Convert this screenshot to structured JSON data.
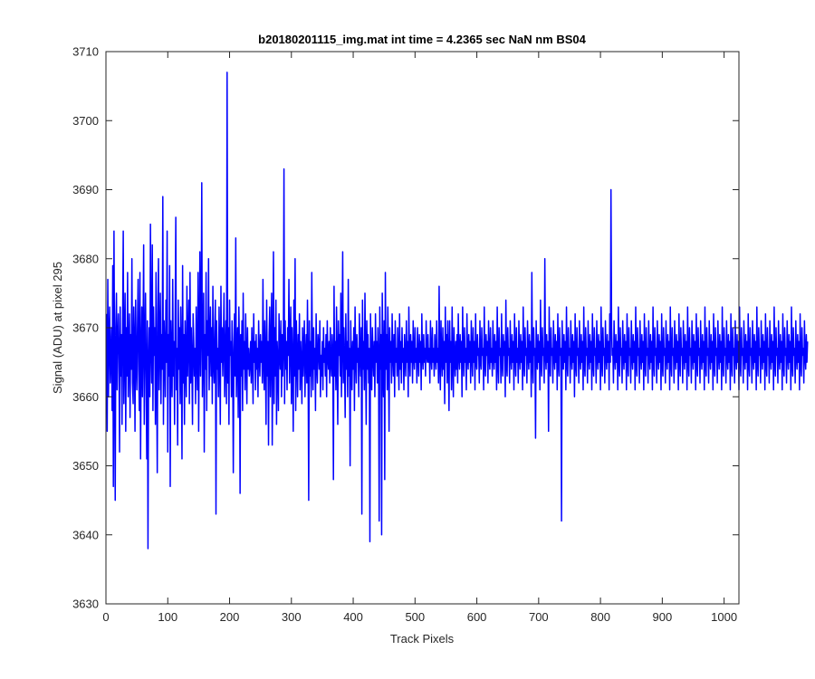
{
  "chart_data": {
    "type": "line",
    "title": "b20180201115_img.mat int time = 4.2365 sec  NaN nm BS04",
    "xlabel": "Track Pixels",
    "ylabel": "Signal (ADU) at pixel 295",
    "xlim": [
      0,
      1024
    ],
    "ylim": [
      3630,
      3710
    ],
    "xticks": [
      0,
      100,
      200,
      300,
      400,
      500,
      600,
      700,
      800,
      900,
      1000
    ],
    "yticks": [
      3630,
      3640,
      3650,
      3660,
      3670,
      3680,
      3690,
      3700,
      3710
    ],
    "grid": false,
    "box": true,
    "series": [
      {
        "color": "#0000ff",
        "x_start": 1,
        "x_step": 1,
        "mean": 3666,
        "values": [
          3672,
          3655,
          3677,
          3660,
          3668,
          3673,
          3662,
          3666,
          3670,
          3658,
          3679,
          3647,
          3684,
          3664,
          3645,
          3670,
          3675,
          3661,
          3668,
          3672,
          3666,
          3652,
          3673,
          3663,
          3669,
          3656,
          3671,
          3684,
          3659,
          3667,
          3675,
          3655,
          3670,
          3663,
          3678,
          3660,
          3666,
          3672,
          3657,
          3669,
          3664,
          3680,
          3662,
          3659,
          3673,
          3668,
          3655,
          3674,
          3666,
          3661,
          3670,
          3677,
          3664,
          3658,
          3678,
          3651,
          3666,
          3673,
          3660,
          3669,
          3682,
          3656,
          3667,
          3675,
          3663,
          3651,
          3671,
          3638,
          3665,
          3670,
          3660,
          3685,
          3667,
          3662,
          3682,
          3658,
          3673,
          3666,
          3670,
          3656,
          3678,
          3664,
          3649,
          3672,
          3680,
          3661,
          3668,
          3675,
          3659,
          3669,
          3664,
          3689,
          3656,
          3671,
          3667,
          3660,
          3674,
          3665,
          3684,
          3652,
          3669,
          3663,
          3679,
          3647,
          3671,
          3666,
          3660,
          3677,
          3663,
          3668,
          3656,
          3672,
          3686,
          3661,
          3667,
          3653,
          3674,
          3664,
          3670,
          3659,
          3673,
          3666,
          3651,
          3679,
          3662,
          3669,
          3656,
          3671,
          3665,
          3660,
          3676,
          3663,
          3668,
          3674,
          3659,
          3678,
          3662,
          3670,
          3665,
          3656,
          3672,
          3668,
          3663,
          3667,
          3659,
          3673,
          3666,
          3661,
          3678,
          3655,
          3669,
          3681,
          3663,
          3670,
          3691,
          3660,
          3667,
          3675,
          3652,
          3669,
          3664,
          3678,
          3658,
          3671,
          3666,
          3680,
          3661,
          3668,
          3673,
          3663,
          3670,
          3659,
          3676,
          3665,
          3662,
          3669,
          3674,
          3643,
          3671,
          3664,
          3667,
          3660,
          3673,
          3666,
          3656,
          3676,
          3665,
          3670,
          3663,
          3668,
          3675,
          3660,
          3666,
          3671,
          3659,
          3707,
          3662,
          3670,
          3656,
          3674,
          3666,
          3668,
          3660,
          3671,
          3665,
          3649,
          3667,
          3672,
          3663,
          3683,
          3660,
          3666,
          3670,
          3657,
          3673,
          3667,
          3646,
          3669,
          3663,
          3671,
          3658,
          3675,
          3664,
          3668,
          3661,
          3672,
          3666,
          3659,
          3670,
          3664,
          3667,
          3663,
          3665,
          3668,
          3662,
          3670,
          3666,
          3659,
          3672,
          3665,
          3668,
          3661,
          3669,
          3664,
          3667,
          3660,
          3671,
          3666,
          3663,
          3669,
          3665,
          3668,
          3662,
          3677,
          3665,
          3661,
          3671,
          3666,
          3656,
          3674,
          3663,
          3668,
          3653,
          3669,
          3673,
          3660,
          3667,
          3675,
          3653,
          3667,
          3681,
          3659,
          3670,
          3663,
          3674,
          3656,
          3668,
          3665,
          3658,
          3672,
          3666,
          3664,
          3671,
          3660,
          3669,
          3663,
          3667,
          3693,
          3659,
          3671,
          3664,
          3668,
          3661,
          3670,
          3666,
          3677,
          3662,
          3668,
          3673,
          3659,
          3670,
          3665,
          3655,
          3674,
          3663,
          3680,
          3658,
          3671,
          3666,
          3660,
          3669,
          3664,
          3672,
          3661,
          3668,
          3665,
          3659,
          3670,
          3663,
          3667,
          3671,
          3660,
          3666,
          3669,
          3662,
          3674,
          3665,
          3645,
          3671,
          3663,
          3668,
          3660,
          3678,
          3666,
          3661,
          3670,
          3664,
          3667,
          3658,
          3672,
          3665,
          3662,
          3669,
          3667,
          3664,
          3671,
          3660,
          3666,
          3663,
          3668,
          3661,
          3670,
          3665,
          3667,
          3663,
          3669,
          3660,
          3671,
          3666,
          3664,
          3668,
          3662,
          3670,
          3665,
          3663,
          3669,
          3666,
          3648,
          3676,
          3663,
          3668,
          3661,
          3673,
          3665,
          3656,
          3671,
          3666,
          3669,
          3663,
          3675,
          3660,
          3668,
          3681,
          3662,
          3670,
          3665,
          3657,
          3672,
          3664,
          3668,
          3660,
          3677,
          3663,
          3667,
          3650,
          3671,
          3665,
          3661,
          3668,
          3664,
          3670,
          3658,
          3673,
          3666,
          3662,
          3669,
          3665,
          3667,
          3660,
          3672,
          3666,
          3663,
          3670,
          3643,
          3674,
          3664,
          3668,
          3661,
          3675,
          3666,
          3656,
          3671,
          3664,
          3669,
          3662,
          3667,
          3639,
          3672,
          3665,
          3661,
          3670,
          3666,
          3663,
          3668,
          3660,
          3672,
          3665,
          3668,
          3662,
          3670,
          3666,
          3642,
          3673,
          3664,
          3669,
          3640,
          3675,
          3666,
          3660,
          3671,
          3648,
          3678,
          3664,
          3669,
          3661,
          3673,
          3666,
          3655,
          3670,
          3665,
          3668,
          3662,
          3672,
          3666,
          3663,
          3669,
          3660,
          3671,
          3665,
          3667,
          3663,
          3670,
          3666,
          3661,
          3672,
          3664,
          3668,
          3662,
          3670,
          3665,
          3667,
          3661,
          3669,
          3666,
          3663,
          3671,
          3665,
          3668,
          3660,
          3673,
          3666,
          3663,
          3669,
          3665,
          3668,
          3662,
          3671,
          3666,
          3664,
          3670,
          3665,
          3667,
          3662,
          3670,
          3666,
          3663,
          3669,
          3665,
          3668,
          3661,
          3672,
          3666,
          3664,
          3669,
          3665,
          3667,
          3663,
          3671,
          3666,
          3665,
          3669,
          3665,
          3667,
          3662,
          3671,
          3666,
          3664,
          3670,
          3665,
          3667,
          3663,
          3669,
          3666,
          3664,
          3671,
          3665,
          3667,
          3662,
          3676,
          3665,
          3661,
          3671,
          3666,
          3663,
          3670,
          3664,
          3668,
          3659,
          3673,
          3665,
          3669,
          3662,
          3671,
          3666,
          3658,
          3671,
          3665,
          3668,
          3661,
          3673,
          3665,
          3660,
          3670,
          3666,
          3663,
          3668,
          3664,
          3669,
          3662,
          3672,
          3666,
          3664,
          3669,
          3665,
          3668,
          3660,
          3673,
          3666,
          3663,
          3670,
          3665,
          3667,
          3661,
          3672,
          3666,
          3664,
          3669,
          3665,
          3668,
          3662,
          3671,
          3666,
          3663,
          3670,
          3665,
          3668,
          3661,
          3672,
          3665,
          3664,
          3669,
          3666,
          3667,
          3662,
          3671,
          3665,
          3664,
          3670,
          3666,
          3667,
          3661,
          3673,
          3665,
          3663,
          3669,
          3666,
          3668,
          3662,
          3671,
          3666,
          3664,
          3670,
          3665,
          3667,
          3663,
          3671,
          3666,
          3664,
          3669,
          3665,
          3668,
          3661,
          3673,
          3665,
          3662,
          3670,
          3666,
          3667,
          3662,
          3672,
          3665,
          3663,
          3669,
          3666,
          3668,
          3660,
          3674,
          3665,
          3663,
          3670,
          3666,
          3667,
          3662,
          3671,
          3666,
          3664,
          3669,
          3665,
          3668,
          3661,
          3672,
          3666,
          3663,
          3670,
          3665,
          3667,
          3662,
          3671,
          3666,
          3664,
          3669,
          3665,
          3668,
          3661,
          3673,
          3665,
          3663,
          3670,
          3666,
          3667,
          3662,
          3671,
          3666,
          3664,
          3669,
          3665,
          3668,
          3660,
          3678,
          3665,
          3662,
          3670,
          3666,
          3667,
          3654,
          3671,
          3666,
          3664,
          3669,
          3665,
          3668,
          3661,
          3674,
          3665,
          3663,
          3670,
          3666,
          3667,
          3662,
          3680,
          3666,
          3664,
          3669,
          3665,
          3668,
          3655,
          3673,
          3665,
          3663,
          3670,
          3666,
          3667,
          3662,
          3671,
          3666,
          3664,
          3669,
          3665,
          3668,
          3661,
          3672,
          3665,
          3663,
          3670,
          3666,
          3667,
          3642,
          3671,
          3666,
          3664,
          3669,
          3665,
          3668,
          3661,
          3673,
          3665,
          3663,
          3670,
          3666,
          3667,
          3662,
          3671,
          3666,
          3664,
          3669,
          3665,
          3668,
          3660,
          3672,
          3665,
          3663,
          3670,
          3666,
          3667,
          3662,
          3671,
          3666,
          3664,
          3669,
          3665,
          3668,
          3661,
          3673,
          3665,
          3663,
          3670,
          3666,
          3667,
          3662,
          3671,
          3666,
          3664,
          3669,
          3665,
          3668,
          3661,
          3672,
          3665,
          3663,
          3670,
          3666,
          3667,
          3662,
          3671,
          3666,
          3664,
          3669,
          3665,
          3668,
          3661,
          3673,
          3665,
          3663,
          3670,
          3666,
          3667,
          3662,
          3671,
          3666,
          3664,
          3669,
          3665,
          3668,
          3661,
          3672,
          3665,
          3690,
          3670,
          3666,
          3667,
          3662,
          3671,
          3666,
          3664,
          3669,
          3665,
          3668,
          3661,
          3673,
          3665,
          3663,
          3670,
          3666,
          3667,
          3662,
          3671,
          3666,
          3664,
          3669,
          3665,
          3668,
          3661,
          3672,
          3665,
          3663,
          3670,
          3666,
          3667,
          3662,
          3671,
          3666,
          3664,
          3669,
          3665,
          3668,
          3661,
          3673,
          3665,
          3663,
          3670,
          3666,
          3667,
          3662,
          3671,
          3666,
          3664,
          3669,
          3665,
          3668,
          3661,
          3672,
          3665,
          3663,
          3670,
          3666,
          3667,
          3662,
          3671,
          3666,
          3664,
          3669,
          3665,
          3668,
          3661,
          3673,
          3665,
          3663,
          3670,
          3666,
          3667,
          3662,
          3671,
          3666,
          3664,
          3669,
          3665,
          3668,
          3661,
          3672,
          3665,
          3663,
          3670,
          3666,
          3667,
          3662,
          3671,
          3666,
          3664,
          3669,
          3665,
          3668,
          3661,
          3673,
          3665,
          3663,
          3670,
          3666,
          3667,
          3662,
          3671,
          3666,
          3664,
          3669,
          3665,
          3668,
          3661,
          3672,
          3665,
          3663,
          3670,
          3666,
          3667,
          3662,
          3671,
          3666,
          3664,
          3669,
          3665,
          3668,
          3661,
          3673,
          3665,
          3663,
          3670,
          3666,
          3667,
          3662,
          3671,
          3666,
          3664,
          3669,
          3665,
          3668,
          3661,
          3672,
          3665,
          3663,
          3670,
          3666,
          3667,
          3662,
          3671,
          3666,
          3664,
          3669,
          3665,
          3668,
          3661,
          3673,
          3665,
          3663,
          3670,
          3666,
          3667,
          3662,
          3671,
          3666,
          3664,
          3669,
          3665,
          3668,
          3661,
          3672,
          3665,
          3663,
          3670,
          3666,
          3667,
          3662,
          3671,
          3666,
          3664,
          3669,
          3665,
          3668,
          3661,
          3673,
          3665,
          3663,
          3670,
          3666,
          3667,
          3662,
          3671,
          3666,
          3664,
          3669,
          3665,
          3668,
          3661,
          3672,
          3665,
          3663,
          3670,
          3666,
          3667,
          3662,
          3671,
          3666,
          3664,
          3669,
          3665,
          3668,
          3661,
          3673,
          3665,
          3663,
          3670,
          3666,
          3667,
          3662,
          3671,
          3666,
          3664,
          3669,
          3665,
          3668,
          3661,
          3672,
          3665,
          3663,
          3670,
          3666,
          3667,
          3662,
          3671,
          3666,
          3664,
          3669,
          3665,
          3668,
          3661,
          3673,
          3665,
          3663,
          3670,
          3666,
          3667,
          3662,
          3671,
          3666,
          3664,
          3669,
          3665,
          3668,
          3661,
          3672,
          3665,
          3663,
          3670,
          3666,
          3667,
          3662,
          3671,
          3666,
          3664,
          3669,
          3665,
          3668,
          3661,
          3673,
          3665,
          3663,
          3670,
          3666,
          3667,
          3662,
          3671,
          3666,
          3664,
          3669,
          3665,
          3668,
          3661,
          3672,
          3665,
          3663,
          3670,
          3666,
          3667,
          3662,
          3671,
          3666,
          3664,
          3669,
          3665,
          3668,
          3661,
          3673,
          3665,
          3663,
          3670,
          3666,
          3667,
          3662,
          3671,
          3666,
          3664,
          3669,
          3665,
          3668,
          3661,
          3672,
          3665,
          3663,
          3670,
          3666,
          3667,
          3662,
          3671,
          3666,
          3664,
          3669,
          3665,
          3668
        ]
      }
    ]
  }
}
